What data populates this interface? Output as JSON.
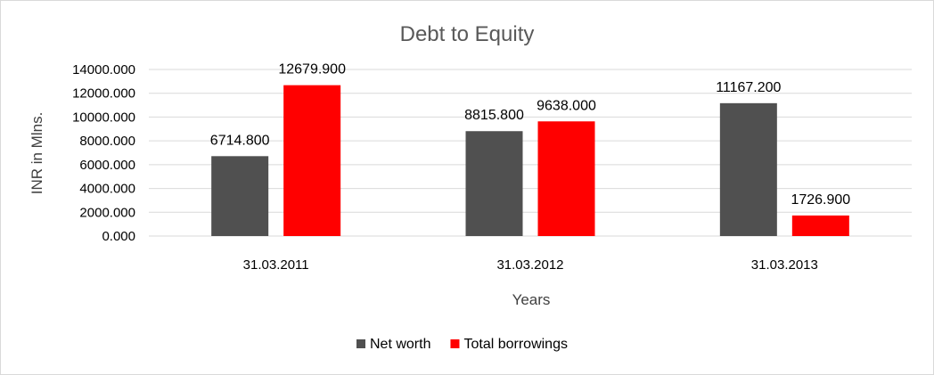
{
  "chart_data": {
    "type": "bar",
    "title": "Debt to Equity",
    "xlabel": "Years",
    "ylabel": "INR in Mlns.",
    "categories": [
      "31.03.2011",
      "31.03.2012",
      "31.03.2013"
    ],
    "series": [
      {
        "name": "Net worth",
        "color": "#505050",
        "values": [
          6714.8,
          8815.8,
          11167.2
        ],
        "labels": [
          "6714.800",
          "8815.800",
          "11167.200"
        ]
      },
      {
        "name": "Total borrowings",
        "color": "#ff0000",
        "values": [
          12679.9,
          9638.0,
          1726.9
        ],
        "labels": [
          "12679.900",
          "9638.000",
          "1726.900"
        ]
      }
    ],
    "ylim": [
      0,
      14000
    ],
    "yticks": [
      0,
      2000,
      4000,
      6000,
      8000,
      10000,
      12000,
      14000
    ],
    "ytick_labels": [
      "0.000",
      "2000.000",
      "4000.000",
      "6000.000",
      "8000.000",
      "10000.000",
      "12000.000",
      "14000.000"
    ],
    "grid": true,
    "legend_position": "bottom"
  }
}
